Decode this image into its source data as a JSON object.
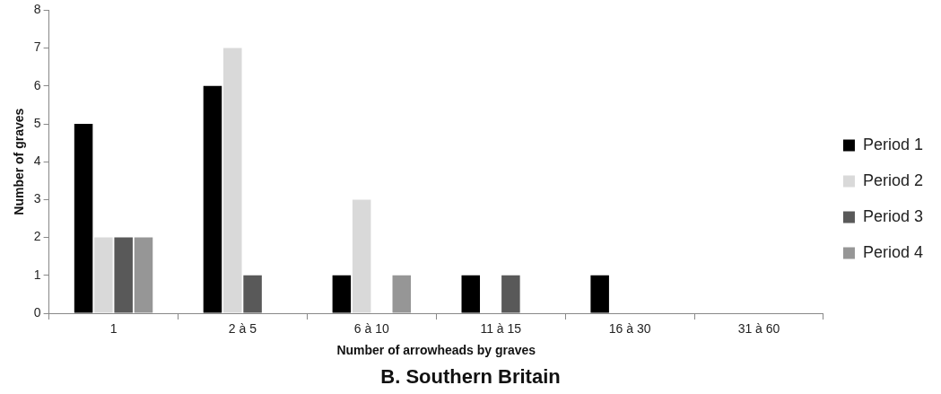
{
  "chart_data": {
    "type": "bar",
    "title": "B. Southern Britain",
    "xlabel": "Number of arrowheads by graves",
    "ylabel": "Number of graves",
    "categories": [
      "1",
      "2 à 5",
      "6 à 10",
      "11 à 15",
      "16 à 30",
      "31 à 60"
    ],
    "series": [
      {
        "name": "Period 1",
        "color": "#000000",
        "values": [
          5,
          6,
          1,
          1,
          1,
          0
        ]
      },
      {
        "name": "Period 2",
        "color": "#d9d9d9",
        "values": [
          2,
          7,
          3,
          0,
          0,
          0
        ]
      },
      {
        "name": "Period 3",
        "color": "#595959",
        "values": [
          2,
          1,
          0,
          1,
          0,
          0
        ]
      },
      {
        "name": "Period 4",
        "color": "#969696",
        "values": [
          2,
          0,
          1,
          0,
          0,
          0
        ]
      }
    ],
    "ylim": [
      0,
      8
    ],
    "yticks": [
      0,
      1,
      2,
      3,
      4,
      5,
      6,
      7,
      8
    ],
    "grid": false,
    "legend": "right"
  }
}
